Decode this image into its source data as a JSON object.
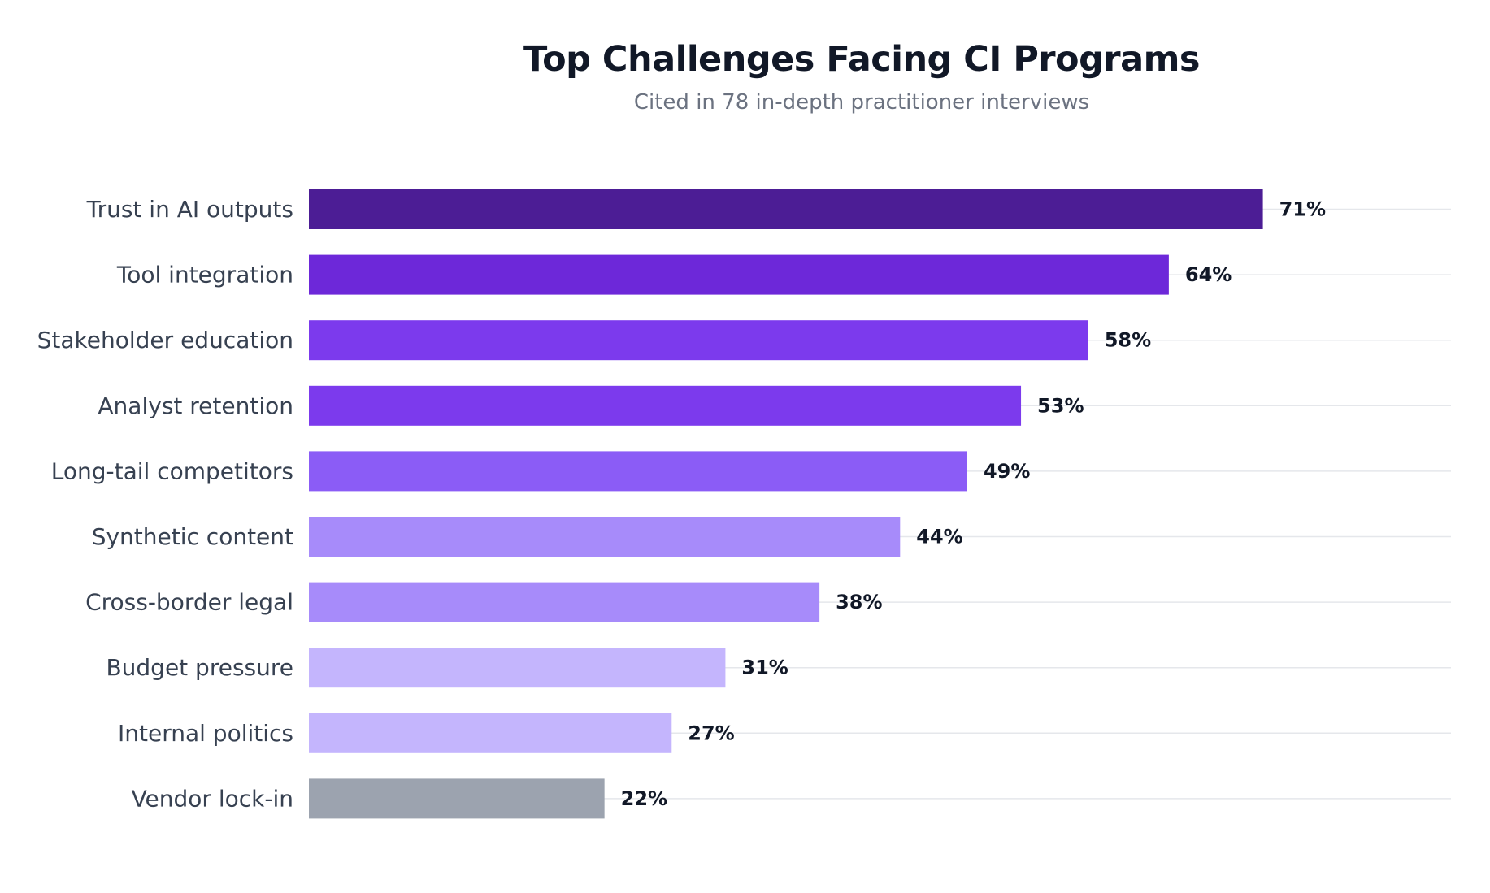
{
  "chart_data": {
    "type": "bar",
    "orientation": "horizontal",
    "title": "Top Challenges Facing CI Programs",
    "subtitle": "Cited in 78 in-depth practitioner interviews",
    "xlabel": "",
    "ylabel": "",
    "grid": true,
    "xlim": [
      0,
      85
    ],
    "categories": [
      "Trust in AI outputs",
      "Tool integration",
      "Stakeholder education",
      "Analyst retention",
      "Long-tail competitors",
      "Synthetic content",
      "Cross-border legal",
      "Budget pressure",
      "Internal politics",
      "Vendor lock-in"
    ],
    "values": [
      71,
      64,
      58,
      53,
      49,
      44,
      38,
      31,
      27,
      22
    ],
    "value_labels": [
      "71%",
      "64%",
      "58%",
      "53%",
      "49%",
      "44%",
      "38%",
      "31%",
      "27%",
      "22%"
    ],
    "bar_colors": [
      "#4c1d95",
      "#6d28d9",
      "#7c3aed",
      "#7c3aed",
      "#8b5cf6",
      "#a78bfa",
      "#a78bfa",
      "#c4b5fd",
      "#c4b5fd",
      "#9ca3af"
    ],
    "gridline_color": "#e5e7eb"
  }
}
